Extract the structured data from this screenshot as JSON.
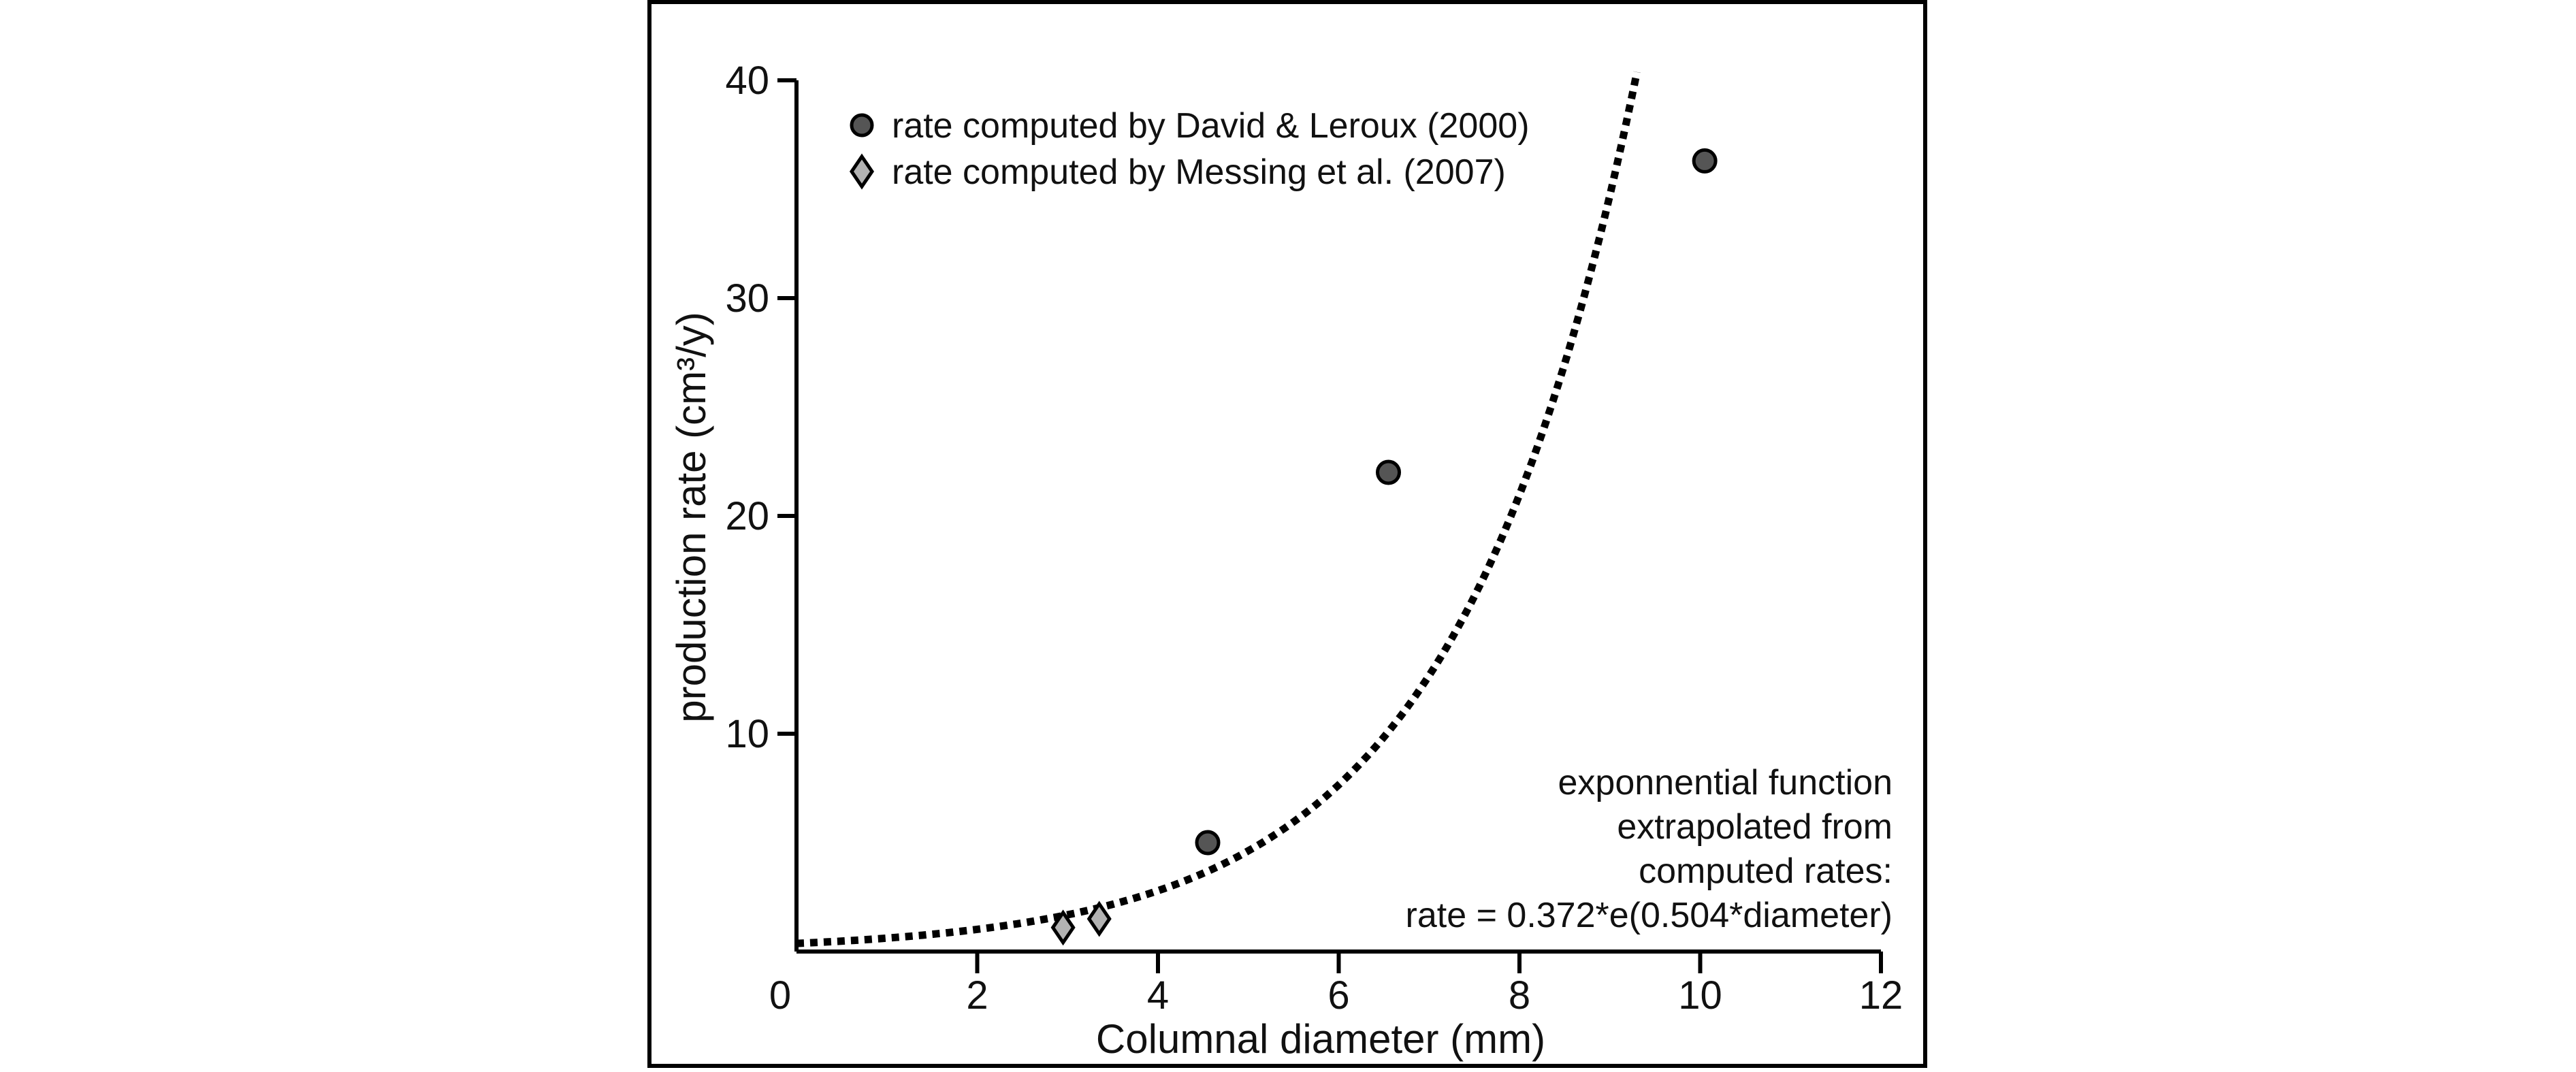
{
  "chart_data": {
    "type": "scatter",
    "title": "",
    "xlabel": "Columnal diameter (mm)",
    "ylabel": "production rate (cm³/y)",
    "xlim": [
      0,
      12
    ],
    "ylim": [
      0,
      40
    ],
    "x_ticks": [
      "0",
      "2",
      "4",
      "6",
      "8",
      "10",
      "12"
    ],
    "y_ticks": [
      "10",
      "20",
      "30",
      "40"
    ],
    "grid": false,
    "legend_position": "top-left",
    "series": [
      {
        "name": "rate computed by David & Leroux (2000)",
        "marker": "circle",
        "color": "#555555",
        "points": [
          {
            "x": 4.55,
            "y": 5.0
          },
          {
            "x": 6.55,
            "y": 22.0
          },
          {
            "x": 10.05,
            "y": 36.3
          }
        ]
      },
      {
        "name": "rate computed by Messing et al. (2007)",
        "marker": "diamond",
        "color": "#b3b3b3",
        "points": [
          {
            "x": 2.95,
            "y": 1.1
          },
          {
            "x": 3.35,
            "y": 1.5
          }
        ]
      }
    ],
    "fit_curve": {
      "style": "dotted",
      "color": "#000000",
      "coef_a": 0.372,
      "coef_b": 0.504,
      "x_range": [
        0,
        9.3
      ]
    },
    "annotation": {
      "lines": [
        "exponnential function",
        "extrapolated from",
        "computed rates:",
        "rate = 0.372*e(0.504*diameter)"
      ]
    }
  }
}
